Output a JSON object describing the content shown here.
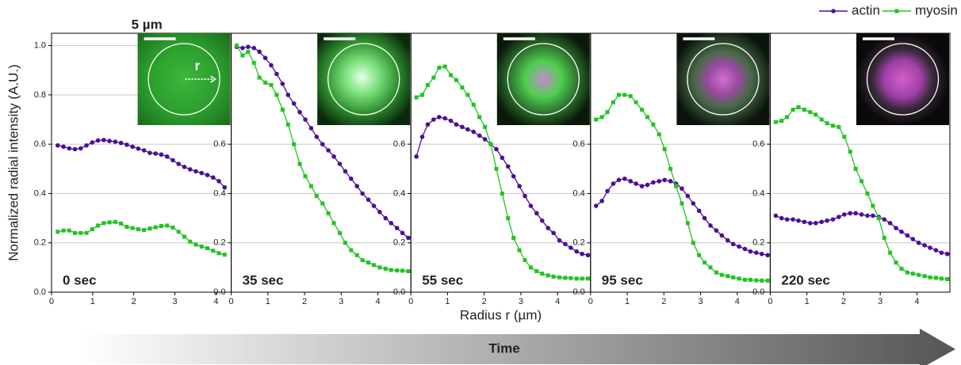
{
  "chart_data": [
    {
      "type": "line",
      "annotation": "0 sec",
      "ylabel": "Normalized radial intensity (A.U.)",
      "x": [
        0.15,
        0.29,
        0.43,
        0.57,
        0.71,
        0.85,
        0.99,
        1.13,
        1.27,
        1.41,
        1.55,
        1.69,
        1.83,
        1.97,
        2.11,
        2.25,
        2.39,
        2.53,
        2.67,
        2.81,
        2.95,
        3.09,
        3.23,
        3.37,
        3.51,
        3.65,
        3.79,
        3.93,
        4.07,
        4.21
      ],
      "series": [
        {
          "name": "actin",
          "color": "#4b0f96",
          "marker": "circle",
          "values": [
            0.595,
            0.59,
            0.583,
            0.58,
            0.583,
            0.595,
            0.607,
            0.615,
            0.617,
            0.613,
            0.61,
            0.605,
            0.598,
            0.59,
            0.582,
            0.575,
            0.565,
            0.562,
            0.558,
            0.55,
            0.535,
            0.52,
            0.508,
            0.498,
            0.49,
            0.483,
            0.475,
            0.465,
            0.45,
            0.425
          ]
        },
        {
          "name": "myosin",
          "color": "#22c322",
          "marker": "square",
          "values": [
            0.245,
            0.25,
            0.25,
            0.24,
            0.24,
            0.24,
            0.255,
            0.27,
            0.28,
            0.283,
            0.285,
            0.278,
            0.265,
            0.26,
            0.255,
            0.252,
            0.258,
            0.263,
            0.268,
            0.27,
            0.262,
            0.245,
            0.225,
            0.205,
            0.193,
            0.185,
            0.178,
            0.168,
            0.158,
            0.152
          ]
        }
      ],
      "xlim": [
        0,
        4.37
      ],
      "xticks": [
        0,
        1,
        2,
        3,
        4
      ],
      "ylim": [
        0,
        1.05
      ],
      "yticks": [
        {
          "value": 0,
          "label": "0.0"
        },
        {
          "value": 0.2,
          "label": "0.2"
        },
        {
          "value": 0.4,
          "label": "0.4"
        },
        {
          "value": 0.6,
          "label": "0.6"
        },
        {
          "value": 0.8,
          "label": "0.8"
        },
        {
          "value": 1,
          "label": "1.0"
        }
      ],
      "grid": true
    },
    {
      "type": "line",
      "annotation": "35 sec",
      "x": [
        0.15,
        0.31,
        0.46,
        0.62,
        0.77,
        0.93,
        1.09,
        1.24,
        1.4,
        1.55,
        1.71,
        1.87,
        2.02,
        2.18,
        2.33,
        2.49,
        2.65,
        2.8,
        2.96,
        3.11,
        3.27,
        3.43,
        3.58,
        3.74,
        3.89,
        4.05,
        4.21,
        4.36,
        4.52,
        4.67,
        4.83
      ],
      "series": [
        {
          "color": "#4b0f96",
          "marker": "circle",
          "values": [
            0.995,
            0.99,
            0.995,
            0.99,
            0.975,
            0.95,
            0.92,
            0.885,
            0.845,
            0.8,
            0.765,
            0.73,
            0.7,
            0.665,
            0.63,
            0.6,
            0.575,
            0.55,
            0.52,
            0.49,
            0.46,
            0.43,
            0.4,
            0.375,
            0.35,
            0.325,
            0.3,
            0.28,
            0.26,
            0.24,
            0.22
          ]
        },
        {
          "color": "#22c322",
          "marker": "square",
          "values": [
            1.0,
            0.96,
            0.975,
            0.93,
            0.87,
            0.85,
            0.84,
            0.8,
            0.74,
            0.68,
            0.6,
            0.52,
            0.47,
            0.43,
            0.39,
            0.36,
            0.32,
            0.28,
            0.24,
            0.2,
            0.17,
            0.15,
            0.13,
            0.12,
            0.11,
            0.1,
            0.095,
            0.09,
            0.088,
            0.087,
            0.085
          ]
        }
      ],
      "xlim": [
        0,
        4.9
      ],
      "xticks": [
        0,
        1,
        2,
        3,
        4
      ],
      "ylim": [
        0,
        1.05
      ],
      "yticks": [
        {
          "value": 0,
          "label": "0.0"
        },
        {
          "value": 0.2,
          "label": "0.2"
        },
        {
          "value": 0.4,
          "label": "0.4"
        },
        {
          "value": 0.6,
          "label": "0.6"
        }
      ],
      "grid": true
    },
    {
      "type": "line",
      "annotation": "55 sec",
      "xlabel": "Radius r (µm)",
      "x": [
        0.15,
        0.31,
        0.46,
        0.62,
        0.77,
        0.93,
        1.09,
        1.24,
        1.4,
        1.55,
        1.71,
        1.87,
        2.02,
        2.18,
        2.33,
        2.49,
        2.65,
        2.8,
        2.96,
        3.11,
        3.27,
        3.43,
        3.58,
        3.74,
        3.89,
        4.05,
        4.21,
        4.36,
        4.52,
        4.67,
        4.83
      ],
      "series": [
        {
          "color": "#4b0f96",
          "marker": "circle",
          "values": [
            0.55,
            0.63,
            0.68,
            0.7,
            0.71,
            0.705,
            0.695,
            0.68,
            0.67,
            0.66,
            0.65,
            0.635,
            0.62,
            0.6,
            0.58,
            0.545,
            0.51,
            0.47,
            0.43,
            0.39,
            0.35,
            0.32,
            0.29,
            0.26,
            0.24,
            0.21,
            0.195,
            0.18,
            0.165,
            0.155,
            0.15
          ]
        },
        {
          "color": "#22c322",
          "marker": "square",
          "values": [
            0.79,
            0.8,
            0.84,
            0.87,
            0.91,
            0.915,
            0.88,
            0.86,
            0.83,
            0.8,
            0.76,
            0.71,
            0.67,
            0.6,
            0.5,
            0.4,
            0.3,
            0.22,
            0.17,
            0.13,
            0.1,
            0.085,
            0.075,
            0.068,
            0.063,
            0.06,
            0.058,
            0.057,
            0.055,
            0.055,
            0.055
          ]
        }
      ],
      "xlim": [
        0,
        4.9
      ],
      "xticks": [
        0,
        1,
        2,
        3,
        4
      ],
      "ylim": [
        0,
        1.05
      ],
      "yticks": [
        {
          "value": 0,
          "label": "0.0"
        },
        {
          "value": 0.2,
          "label": "0.2"
        },
        {
          "value": 0.4,
          "label": "0.4"
        },
        {
          "value": 0.6,
          "label": "0.6"
        }
      ],
      "grid": true
    },
    {
      "type": "line",
      "annotation": "95 sec",
      "x": [
        0.15,
        0.31,
        0.46,
        0.62,
        0.77,
        0.93,
        1.09,
        1.24,
        1.4,
        1.55,
        1.71,
        1.87,
        2.02,
        2.18,
        2.33,
        2.49,
        2.65,
        2.8,
        2.96,
        3.11,
        3.27,
        3.43,
        3.58,
        3.74,
        3.89,
        4.05,
        4.21,
        4.36,
        4.52,
        4.67,
        4.83
      ],
      "series": [
        {
          "color": "#4b0f96",
          "marker": "circle",
          "values": [
            0.35,
            0.37,
            0.41,
            0.44,
            0.455,
            0.46,
            0.45,
            0.44,
            0.43,
            0.435,
            0.445,
            0.45,
            0.455,
            0.45,
            0.44,
            0.42,
            0.39,
            0.36,
            0.33,
            0.3,
            0.27,
            0.25,
            0.23,
            0.21,
            0.195,
            0.185,
            0.175,
            0.165,
            0.16,
            0.155,
            0.15
          ]
        },
        {
          "color": "#22c322",
          "marker": "square",
          "values": [
            0.7,
            0.71,
            0.73,
            0.77,
            0.8,
            0.8,
            0.795,
            0.77,
            0.74,
            0.71,
            0.68,
            0.64,
            0.58,
            0.5,
            0.43,
            0.36,
            0.28,
            0.2,
            0.15,
            0.12,
            0.1,
            0.08,
            0.07,
            0.065,
            0.06,
            0.055,
            0.05,
            0.05,
            0.048,
            0.047,
            0.047
          ]
        }
      ],
      "xlim": [
        0,
        4.9
      ],
      "xticks": [
        0,
        1,
        2,
        3,
        4
      ],
      "ylim": [
        0,
        1.05
      ],
      "yticks": [
        {
          "value": 0,
          "label": "0.0"
        },
        {
          "value": 0.2,
          "label": "0.2"
        },
        {
          "value": 0.4,
          "label": "0.4"
        },
        {
          "value": 0.6,
          "label": "0.6"
        }
      ],
      "grid": true
    },
    {
      "type": "line",
      "annotation": "220 sec",
      "x": [
        0.15,
        0.31,
        0.46,
        0.62,
        0.77,
        0.93,
        1.09,
        1.24,
        1.4,
        1.55,
        1.71,
        1.87,
        2.02,
        2.18,
        2.33,
        2.49,
        2.65,
        2.8,
        2.96,
        3.11,
        3.27,
        3.43,
        3.58,
        3.74,
        3.89,
        4.05,
        4.21,
        4.36,
        4.52,
        4.67,
        4.83
      ],
      "series": [
        {
          "color": "#4b0f96",
          "marker": "circle",
          "values": [
            0.31,
            0.3,
            0.295,
            0.295,
            0.29,
            0.285,
            0.28,
            0.28,
            0.285,
            0.29,
            0.295,
            0.305,
            0.315,
            0.32,
            0.32,
            0.315,
            0.31,
            0.31,
            0.305,
            0.295,
            0.28,
            0.26,
            0.245,
            0.23,
            0.215,
            0.2,
            0.19,
            0.18,
            0.17,
            0.16,
            0.155
          ]
        },
        {
          "color": "#22c322",
          "marker": "square",
          "values": [
            0.69,
            0.695,
            0.71,
            0.74,
            0.75,
            0.74,
            0.73,
            0.72,
            0.7,
            0.685,
            0.675,
            0.67,
            0.63,
            0.57,
            0.5,
            0.45,
            0.4,
            0.35,
            0.3,
            0.22,
            0.16,
            0.12,
            0.095,
            0.08,
            0.075,
            0.07,
            0.065,
            0.06,
            0.058,
            0.055,
            0.053
          ]
        }
      ],
      "xlim": [
        0,
        4.9
      ],
      "xticks": [
        0,
        1,
        2,
        3,
        4
      ],
      "ylim": [
        0,
        1.05
      ],
      "yticks": [
        {
          "value": 0,
          "label": "0.0"
        },
        {
          "value": 0.2,
          "label": "0.2"
        },
        {
          "value": 0.4,
          "label": "0.4"
        },
        {
          "value": 0.6,
          "label": "0.6"
        }
      ],
      "grid": true
    }
  ],
  "inset": {
    "scale_bar": "5 µm",
    "radius_label": "r"
  },
  "time_label": "Time"
}
